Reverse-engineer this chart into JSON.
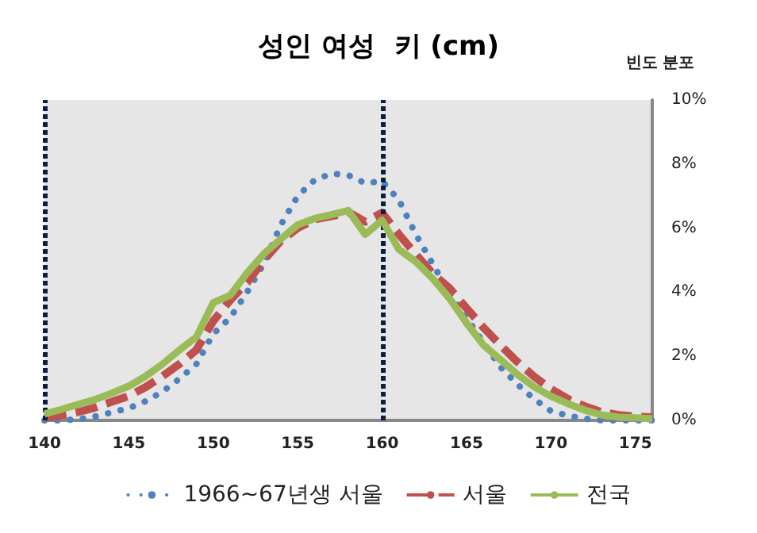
{
  "chart_data": {
    "type": "line",
    "title": "성인 여성  키 (cm)",
    "ylabel": "빈도 분포",
    "x": [
      140,
      141,
      142,
      143,
      144,
      145,
      146,
      147,
      148,
      149,
      150,
      151,
      152,
      153,
      154,
      155,
      156,
      157,
      158,
      159,
      160,
      161,
      162,
      163,
      164,
      165,
      166,
      167,
      168,
      169,
      170,
      171,
      172,
      173,
      174,
      175,
      176
    ],
    "series": [
      {
        "name": "1966~67년생 서울",
        "color": "#4f81bd",
        "line_style": "dotted",
        "values": [
          0,
          0,
          0.03,
          0.12,
          0.25,
          0.38,
          0.6,
          0.9,
          1.3,
          1.76,
          2.7,
          3.2,
          4.0,
          4.9,
          6.1,
          7.0,
          7.5,
          7.7,
          7.65,
          7.4,
          7.47,
          6.87,
          5.8,
          4.88,
          3.96,
          3.2,
          2.43,
          1.67,
          1.13,
          0.67,
          0.29,
          0.15,
          0.05,
          0,
          0,
          0,
          0
        ]
      },
      {
        "name": "서울",
        "color": "#c0504d",
        "line_style": "dashed",
        "values": [
          0.08,
          0.15,
          0.26,
          0.4,
          0.58,
          0.76,
          1.04,
          1.38,
          1.76,
          2.2,
          3.1,
          3.75,
          4.3,
          5.0,
          5.6,
          6.0,
          6.27,
          6.37,
          6.5,
          6.2,
          6.48,
          5.8,
          5.18,
          4.58,
          4.12,
          3.5,
          2.9,
          2.35,
          1.83,
          1.37,
          0.98,
          0.67,
          0.44,
          0.26,
          0.17,
          0.12,
          0.1
        ]
      },
      {
        "name": "전국",
        "color": "#9bbb59",
        "line_style": "solid",
        "values": [
          0.2,
          0.34,
          0.5,
          0.65,
          0.85,
          1.07,
          1.38,
          1.76,
          2.2,
          2.6,
          3.67,
          3.9,
          4.6,
          5.2,
          5.66,
          6.1,
          6.3,
          6.42,
          6.55,
          5.8,
          6.25,
          5.33,
          4.95,
          4.42,
          3.8,
          3.04,
          2.35,
          1.9,
          1.44,
          1.05,
          0.75,
          0.52,
          0.32,
          0.17,
          0.1,
          0.08,
          0.05
        ]
      }
    ],
    "xlim": [
      140,
      176
    ],
    "xticks": [
      140,
      145,
      150,
      155,
      160,
      165,
      170,
      175
    ],
    "ylim": [
      0,
      10
    ],
    "yticks": [
      {
        "value": 0,
        "label": "0%"
      },
      {
        "value": 2,
        "label": "2%"
      },
      {
        "value": 4,
        "label": "4%"
      },
      {
        "value": 6,
        "label": "6%"
      },
      {
        "value": 8,
        "label": "8%"
      },
      {
        "value": 10,
        "label": "10%"
      }
    ],
    "ref_lines": [
      {
        "axis": "x",
        "value": 140,
        "color": "#0d1f40",
        "line_style": "dotted"
      },
      {
        "axis": "x",
        "value": 160,
        "color": "#0d1f40",
        "line_style": "dotted"
      }
    ],
    "grid": false,
    "legend": "bottom",
    "marker": "none"
  }
}
